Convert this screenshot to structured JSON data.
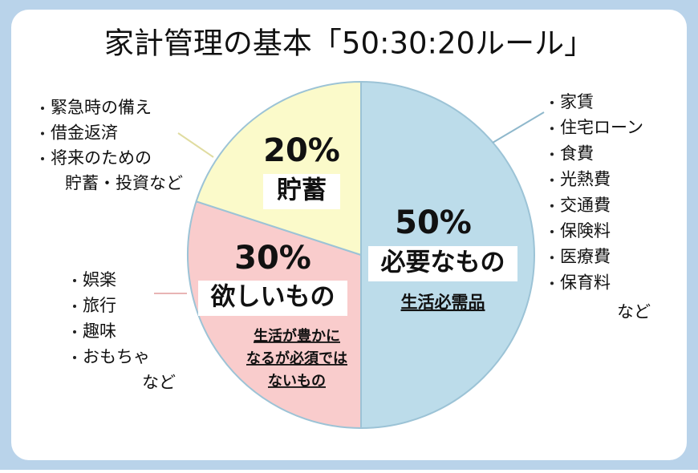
{
  "chart_data": {
    "type": "pie",
    "title": "家計管理の基本「50:30:20ルール」",
    "categories": [
      "必要なもの",
      "欲しいもの",
      "貯蓄"
    ],
    "values": [
      50,
      30,
      20
    ],
    "value_labels": [
      "50%",
      "30%",
      "20%"
    ],
    "colors": [
      "#bcdcea",
      "#f9cccc",
      "#fbfaca"
    ],
    "sublabels": [
      [
        "生活必需品"
      ],
      [
        "生活が豊かに",
        "なるが必須では",
        "ないもの"
      ],
      null
    ],
    "examples": [
      [
        [
          "家賃"
        ],
        [
          "住宅ローン"
        ],
        [
          "食費"
        ],
        [
          "光熱費"
        ],
        [
          "交通費"
        ],
        [
          "保険料"
        ],
        [
          "医療費"
        ],
        [
          "保育料"
        ]
      ],
      [
        [
          "娯楽"
        ],
        [
          "旅行"
        ],
        [
          "趣味"
        ],
        [
          "おもちゃ"
        ]
      ],
      [
        [
          "緊急時の備え"
        ],
        [
          "借金返済"
        ],
        [
          "将来のための",
          "貯蓄・投資など"
        ]
      ]
    ],
    "examples_note": [
      "など",
      "など",
      null
    ]
  }
}
